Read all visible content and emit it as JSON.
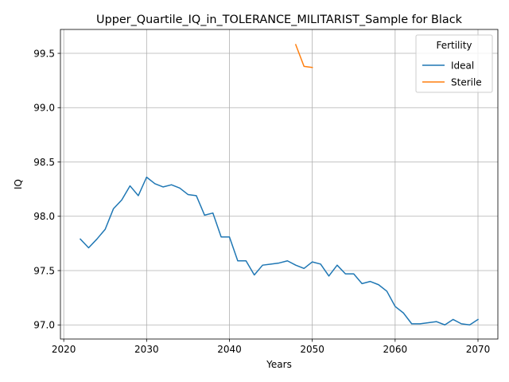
{
  "chart_data": {
    "type": "line",
    "title": "Upper_Quartile_IQ_in_TOLERANCE_MILITARIST_Sample for Black",
    "xlabel": "Years",
    "ylabel": "IQ",
    "xlim": [
      2019.6,
      2072.4
    ],
    "ylim": [
      96.87,
      99.72
    ],
    "xticks": [
      2020,
      2030,
      2040,
      2050,
      2060,
      2070
    ],
    "yticks": [
      97.0,
      97.5,
      98.0,
      98.5,
      99.0,
      99.5
    ],
    "xtick_labels": [
      "2020",
      "2030",
      "2040",
      "2050",
      "2060",
      "2070"
    ],
    "ytick_labels": [
      "97.0",
      "97.5",
      "98.0",
      "98.5",
      "99.0",
      "99.5"
    ],
    "grid": true,
    "legend": {
      "title": "Fertility",
      "position": "top-right"
    },
    "series": [
      {
        "name": "Ideal",
        "color": "#1f77b4",
        "x": [
          2022,
          2023,
          2024,
          2025,
          2026,
          2027,
          2028,
          2029,
          2030,
          2031,
          2032,
          2033,
          2034,
          2035,
          2036,
          2037,
          2038,
          2039,
          2040,
          2041,
          2042,
          2043,
          2044,
          2045,
          2046,
          2047,
          2048,
          2049,
          2050,
          2051,
          2052,
          2053,
          2054,
          2055,
          2056,
          2057,
          2058,
          2059,
          2060,
          2061,
          2062,
          2063,
          2064,
          2065,
          2066,
          2067,
          2068,
          2069,
          2070
        ],
        "y": [
          97.79,
          97.71,
          97.79,
          97.88,
          98.07,
          98.15,
          98.28,
          98.19,
          98.36,
          98.3,
          98.27,
          98.29,
          98.26,
          98.2,
          98.19,
          98.01,
          98.03,
          97.81,
          97.81,
          97.59,
          97.59,
          97.46,
          97.55,
          97.56,
          97.57,
          97.59,
          97.55,
          97.52,
          97.58,
          97.56,
          97.45,
          97.55,
          97.47,
          97.47,
          97.38,
          97.4,
          97.37,
          97.31,
          97.17,
          97.11,
          97.01,
          97.01,
          97.02,
          97.03,
          97.0,
          97.05,
          97.01,
          97.0,
          97.05
        ]
      },
      {
        "name": "Sterile",
        "color": "#ff7f0e",
        "x": [
          2048,
          2049,
          2050
        ],
        "y": [
          99.58,
          99.38,
          99.37
        ]
      }
    ]
  }
}
